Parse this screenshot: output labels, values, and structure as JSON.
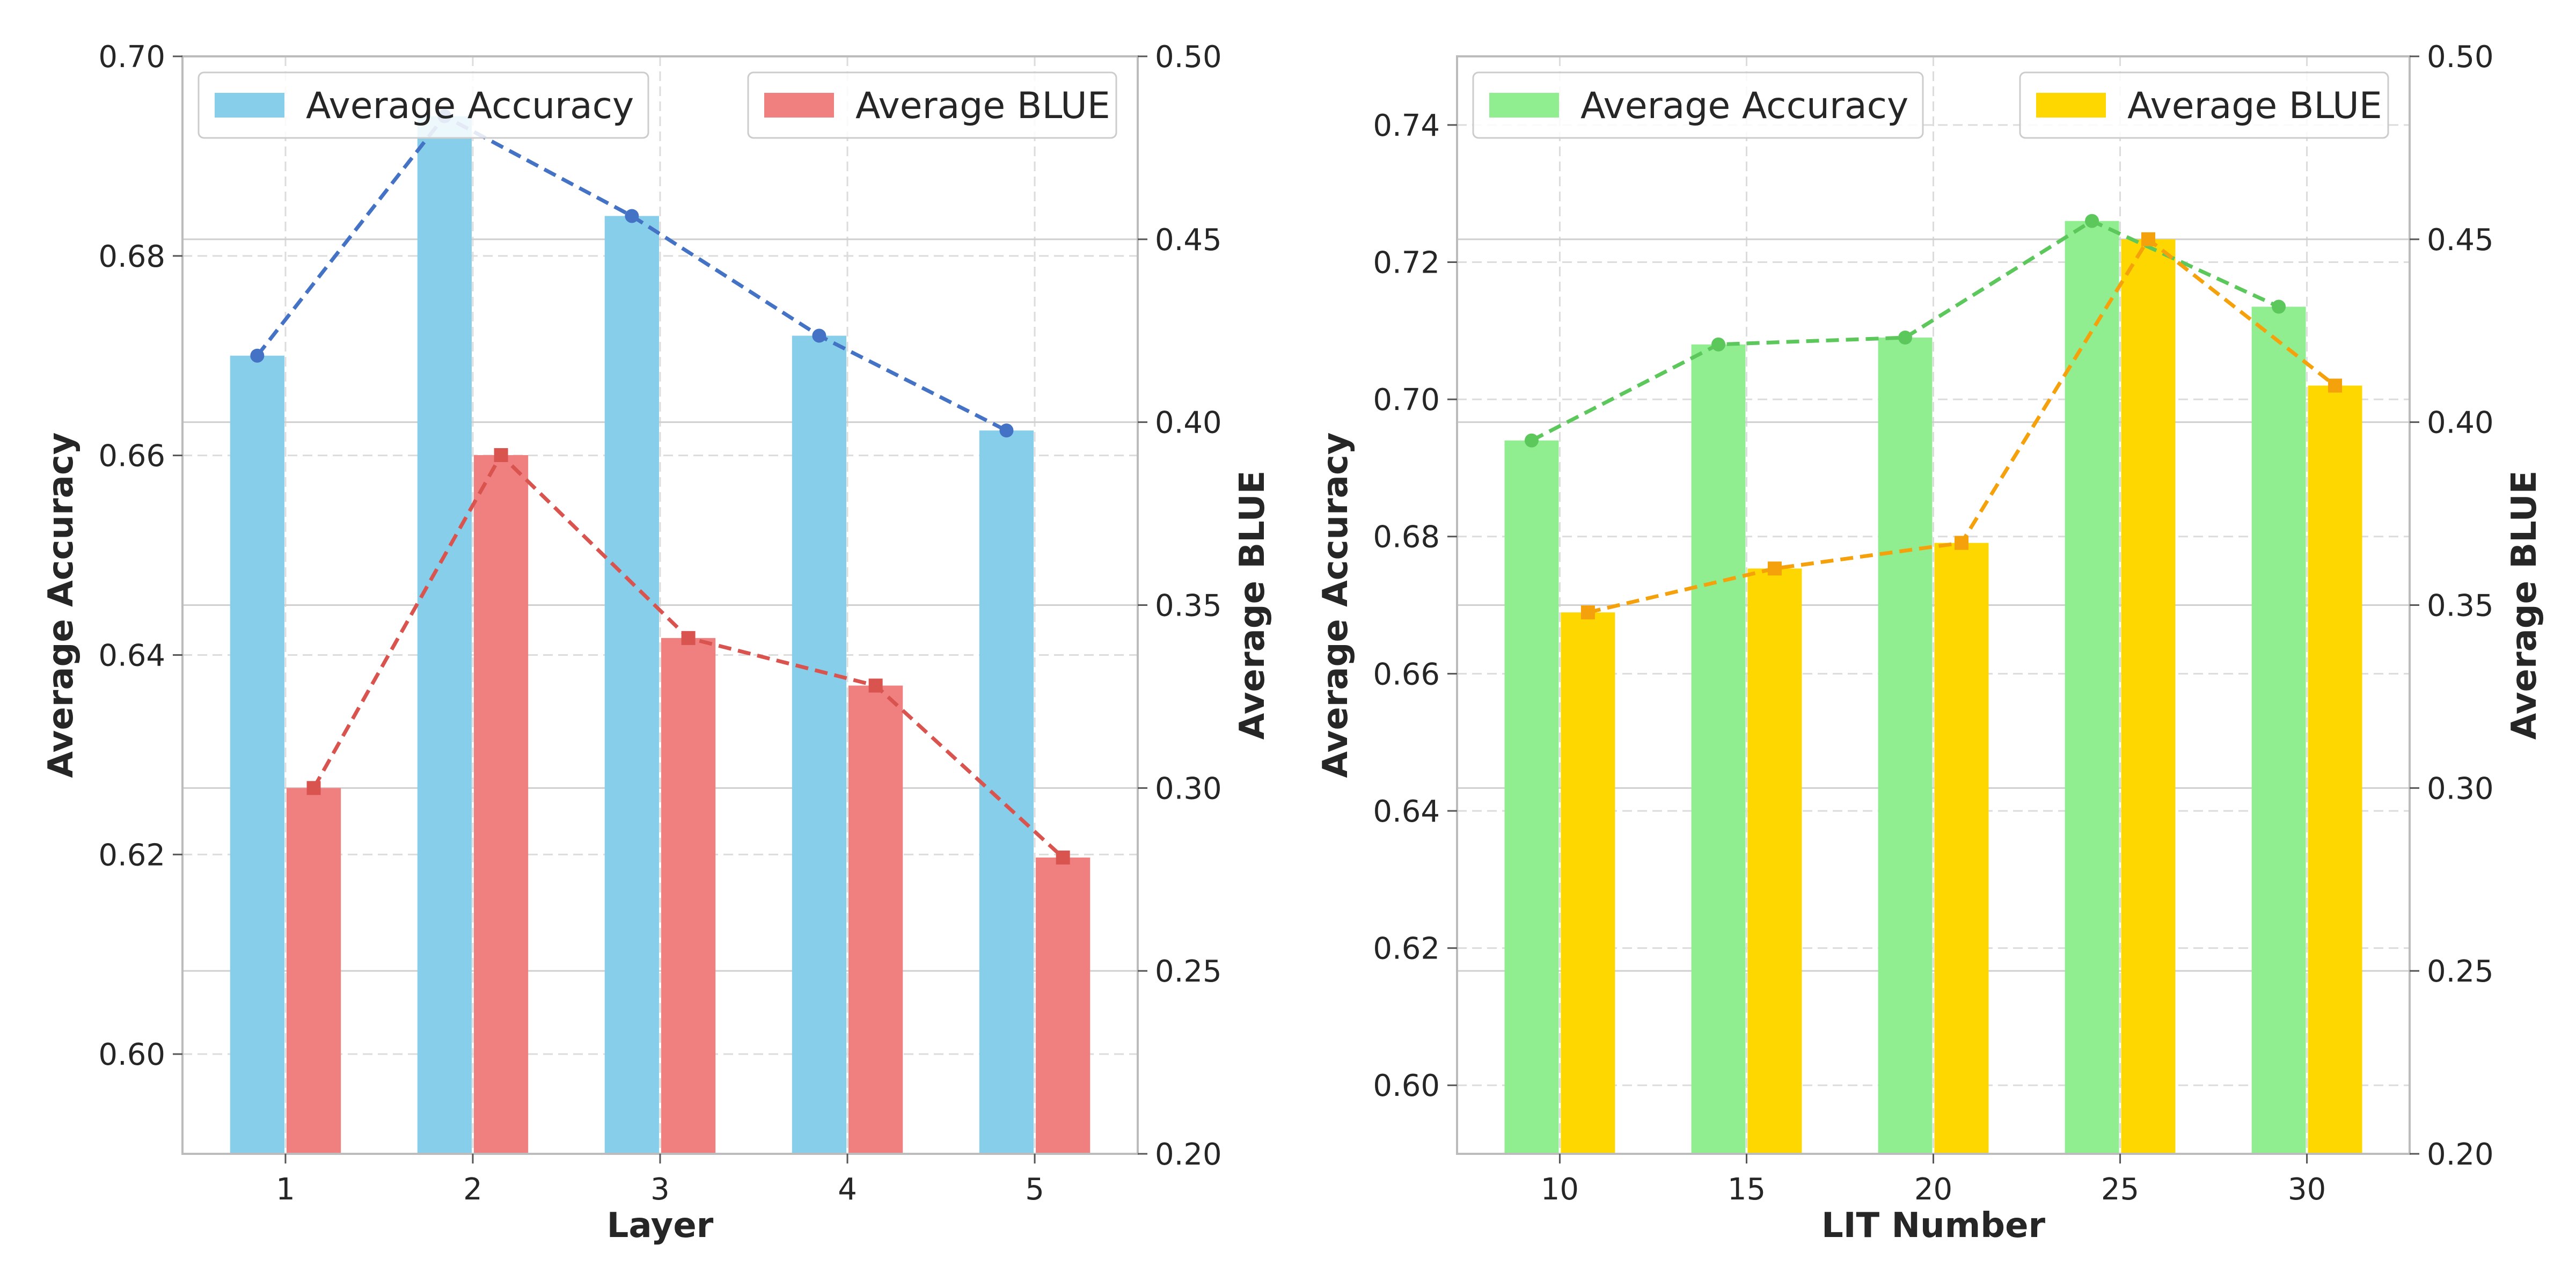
{
  "chart_data": [
    {
      "type": "bar",
      "xlabel": "Layer",
      "ylabel": "Average Accuracy",
      "y2label": "Average BLUE",
      "categories": [
        "1",
        "2",
        "3",
        "4",
        "5"
      ],
      "ylim": [
        0.59,
        0.7
      ],
      "y2lim": [
        0.2,
        0.5
      ],
      "yticks": [
        "0.60",
        "0.62",
        "0.64",
        "0.66",
        "0.68",
        "0.70"
      ],
      "y2ticks": [
        "0.20",
        "0.25",
        "0.30",
        "0.35",
        "0.40",
        "0.45",
        "0.50"
      ],
      "grid": true,
      "series": [
        {
          "name": "Average Accuracy",
          "axis": "left",
          "values": [
            0.67,
            0.694,
            0.684,
            0.672,
            0.6625
          ],
          "bar_color": "#87CEEB",
          "line_color": "#4472C4"
        },
        {
          "name": "Average BLUE",
          "axis": "right",
          "values": [
            0.3,
            0.391,
            0.341,
            0.328,
            0.281
          ],
          "bar_color": "#F08080",
          "line_color": "#D9534F"
        }
      ],
      "legend": [
        "top-left",
        "top-right"
      ]
    },
    {
      "type": "bar",
      "xlabel": "LIT Number",
      "ylabel": "Average Accuracy",
      "y2label": "Average BLUE",
      "categories": [
        "10",
        "15",
        "20",
        "25",
        "30"
      ],
      "ylim": [
        0.59,
        0.75
      ],
      "y2lim": [
        0.2,
        0.5
      ],
      "yticks": [
        "0.60",
        "0.62",
        "0.64",
        "0.66",
        "0.68",
        "0.70",
        "0.72",
        "0.74"
      ],
      "y2ticks": [
        "0.20",
        "0.25",
        "0.30",
        "0.35",
        "0.40",
        "0.45",
        "0.50"
      ],
      "grid": true,
      "series": [
        {
          "name": "Average Accuracy",
          "axis": "left",
          "values": [
            0.694,
            0.708,
            0.709,
            0.726,
            0.7135
          ],
          "bar_color": "#90EE90",
          "line_color": "#5CC85C"
        },
        {
          "name": "Average BLUE",
          "axis": "right",
          "values": [
            0.348,
            0.36,
            0.367,
            0.45,
            0.41
          ],
          "bar_color": "#FFD700",
          "line_color": "#F5A10C"
        }
      ],
      "legend": [
        "top-left",
        "top-right"
      ]
    }
  ]
}
